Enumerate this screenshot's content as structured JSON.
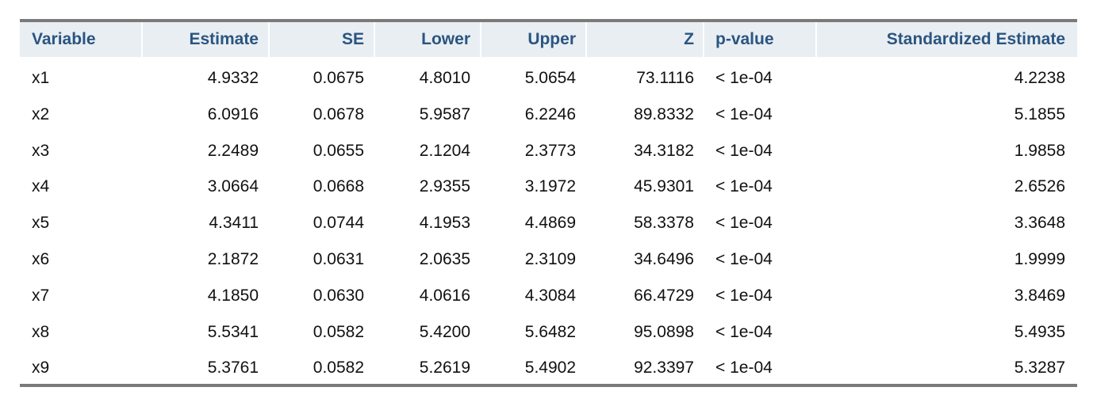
{
  "table": {
    "header": [
      "Variable",
      "Estimate",
      "SE",
      "Lower",
      "Upper",
      "Z",
      "p-value",
      "Standardized Estimate"
    ],
    "rows": [
      [
        "x1",
        "4.9332",
        "0.0675",
        "4.8010",
        "5.0654",
        "73.1116",
        "< 1e-04",
        "4.2238"
      ],
      [
        "x2",
        "6.0916",
        "0.0678",
        "5.9587",
        "6.2246",
        "89.8332",
        "< 1e-04",
        "5.1855"
      ],
      [
        "x3",
        "2.2489",
        "0.0655",
        "2.1204",
        "2.3773",
        "34.3182",
        "< 1e-04",
        "1.9858"
      ],
      [
        "x4",
        "3.0664",
        "0.0668",
        "2.9355",
        "3.1972",
        "45.9301",
        "< 1e-04",
        "2.6526"
      ],
      [
        "x5",
        "4.3411",
        "0.0744",
        "4.1953",
        "4.4869",
        "58.3378",
        "< 1e-04",
        "3.3648"
      ],
      [
        "x6",
        "2.1872",
        "0.0631",
        "2.0635",
        "2.3109",
        "34.6496",
        "< 1e-04",
        "1.9999"
      ],
      [
        "x7",
        "4.1850",
        "0.0630",
        "4.0616",
        "4.3084",
        "66.4729",
        "< 1e-04",
        "3.8469"
      ],
      [
        "x8",
        "5.5341",
        "0.0582",
        "5.4200",
        "5.6482",
        "95.0898",
        "< 1e-04",
        "5.4935"
      ],
      [
        "x9",
        "5.3761",
        "0.0582",
        "5.2619",
        "5.4902",
        "92.3397",
        "< 1e-04",
        "5.3287"
      ]
    ]
  }
}
